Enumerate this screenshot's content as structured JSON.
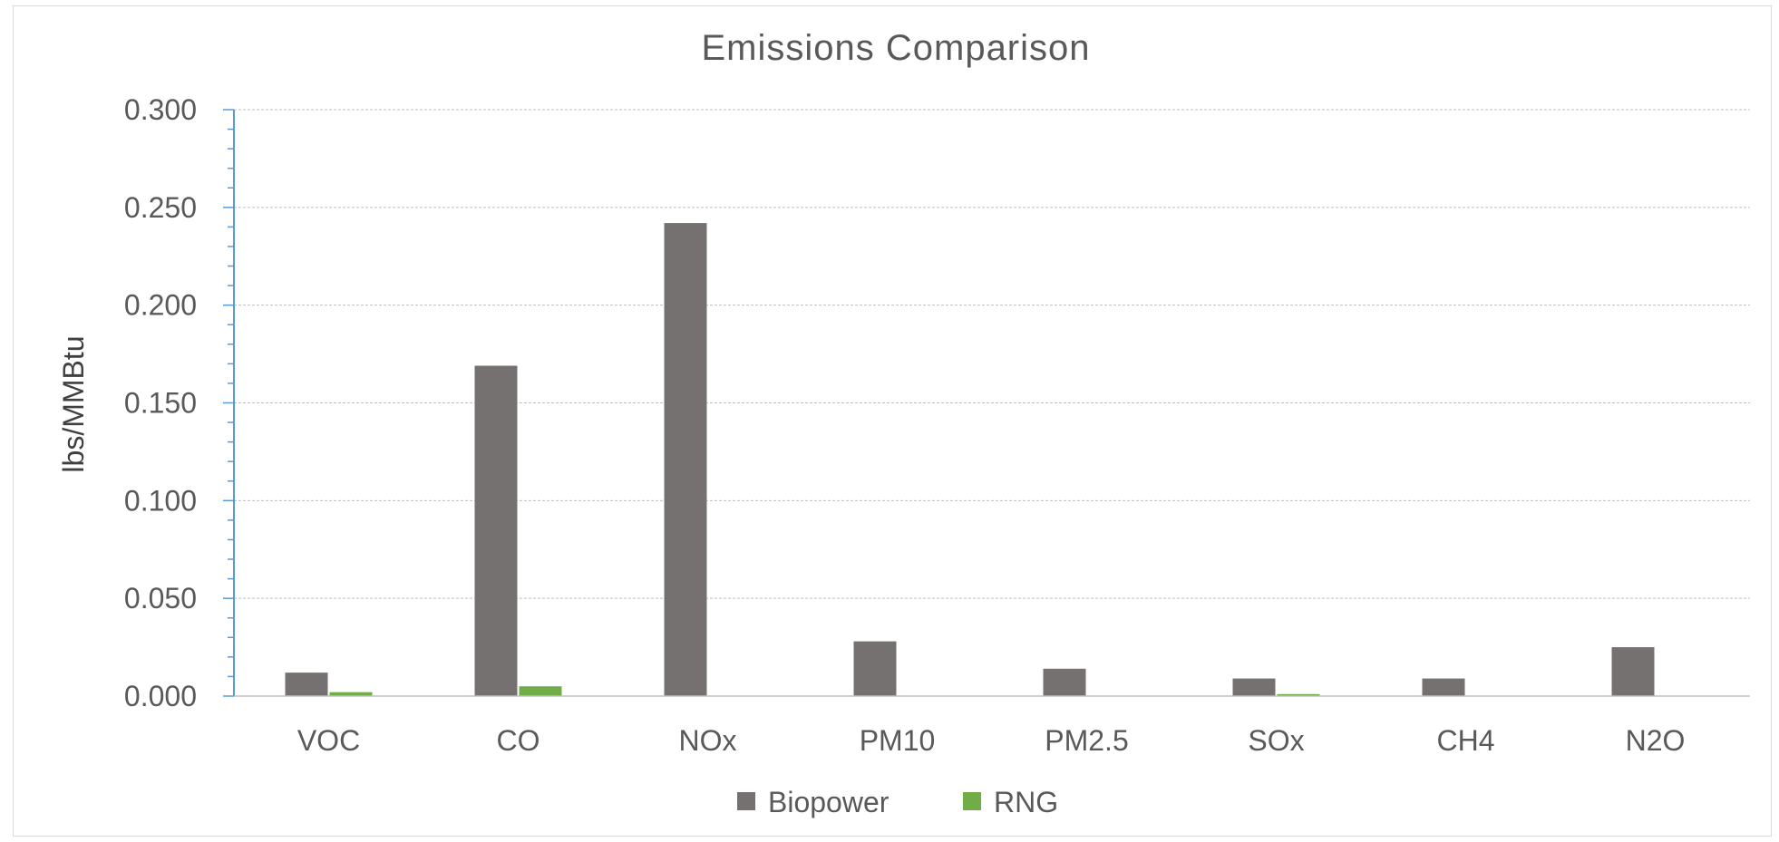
{
  "chart_data": {
    "type": "bar",
    "title": "Emissions Comparison",
    "xlabel": "",
    "ylabel": "lbs/MMBtu",
    "ylim": [
      0,
      0.3
    ],
    "y_ticks": [
      "0.000",
      "0.050",
      "0.100",
      "0.150",
      "0.200",
      "0.250",
      "0.300"
    ],
    "y_tick_values": [
      0,
      0.05,
      0.1,
      0.15,
      0.2,
      0.25,
      0.3
    ],
    "categories": [
      "VOC",
      "CO",
      "NOx",
      "PM10",
      "PM2.5",
      "SOx",
      "CH4",
      "N2O"
    ],
    "series": [
      {
        "name": "Biopower",
        "color": "#767171",
        "values": [
          0.012,
          0.169,
          0.242,
          0.028,
          0.014,
          0.009,
          0.009,
          0.025
        ]
      },
      {
        "name": "RNG",
        "color": "#70ad47",
        "values": [
          0.002,
          0.005,
          0.0,
          0.0,
          0.0,
          0.001,
          0.0,
          0.0
        ]
      }
    ],
    "grid": true,
    "legend_position": "bottom"
  }
}
